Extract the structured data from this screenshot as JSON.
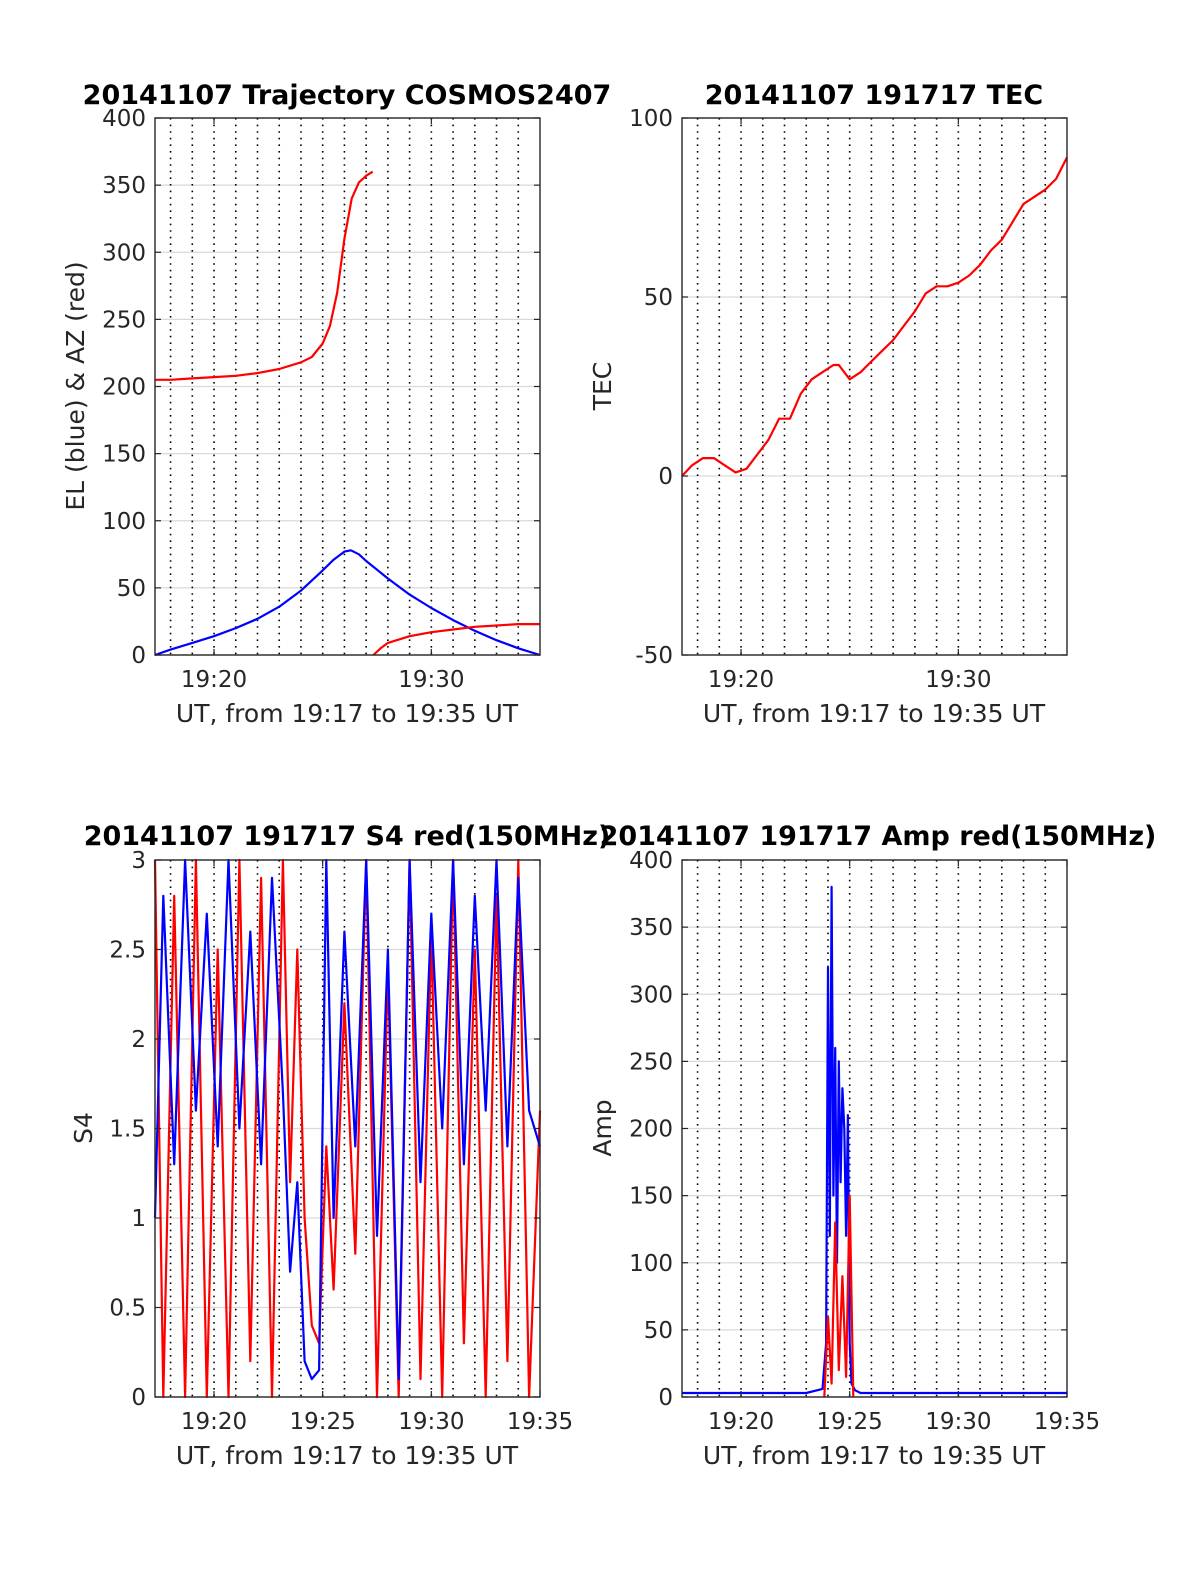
{
  "figure": {
    "colors": {
      "red": "#ff0000",
      "blue": "#0000ff",
      "grid": "#d9d9d9",
      "dotted": "#000000",
      "axis": "#262626"
    }
  },
  "chart_data": [
    {
      "type": "line",
      "title": "20141107 Trajectory COSMOS2407",
      "xlabel": "UT, from 19:17 to 19:35 UT",
      "ylabel": "EL (blue) & AZ (red)",
      "xlim": [
        "19:17:17",
        "19:35:00"
      ],
      "ylim": [
        0,
        400
      ],
      "xticks": [
        "19:20",
        "19:30"
      ],
      "yticks": [
        "0",
        "50",
        "100",
        "150",
        "200",
        "250",
        "300",
        "350",
        "400"
      ],
      "grid": true,
      "series": [
        {
          "color": "#0000ff",
          "x": [
            "19:17:17",
            "19:18:00",
            "19:19:00",
            "19:20:00",
            "19:21:00",
            "19:22:00",
            "19:23:00",
            "19:24:00",
            "19:25:00",
            "19:25:30",
            "19:26:00",
            "19:26:18",
            "19:26:40",
            "19:27:00",
            "19:28:00",
            "19:29:00",
            "19:30:00",
            "19:31:00",
            "19:32:00",
            "19:33:00",
            "19:34:00",
            "19:35:00"
          ],
          "y": [
            0,
            4,
            9,
            14,
            20,
            27,
            36,
            48,
            63,
            71,
            77,
            78,
            75,
            70,
            57,
            45,
            35,
            26,
            18,
            11,
            5,
            0
          ]
        },
        {
          "color": "#ff0000",
          "x": [
            "19:17:17",
            "19:18:00",
            "19:19:00",
            "19:20:00",
            "19:21:00",
            "19:22:00",
            "19:23:00",
            "19:24:00",
            "19:24:30",
            "19:25:00",
            "19:25:20",
            "19:25:40",
            "19:26:00",
            "19:26:20",
            "19:26:40",
            "19:27:00",
            "19:27:18",
            "19:27:19",
            "19:27:20",
            "19:27:40",
            "19:28:00",
            "19:29:00",
            "19:30:00",
            "19:31:00",
            "19:32:00",
            "19:33:00",
            "19:34:00",
            "19:35:00"
          ],
          "y": [
            205,
            205,
            206,
            207,
            208,
            210,
            213,
            218,
            222,
            232,
            245,
            270,
            310,
            340,
            352,
            357,
            360,
            null,
            0,
            5,
            9,
            14,
            17,
            19,
            21,
            22,
            23,
            23
          ]
        }
      ]
    },
    {
      "type": "line",
      "title": "20141107 191717 TEC",
      "xlabel": "UT, from 19:17 to 19:35 UT",
      "ylabel": "TEC",
      "xlim": [
        "19:17:17",
        "19:35:00"
      ],
      "ylim": [
        -50,
        100
      ],
      "xticks": [
        "19:20",
        "19:30"
      ],
      "yticks": [
        "-50",
        "0",
        "50",
        "100"
      ],
      "grid": true,
      "series": [
        {
          "color": "#ff0000",
          "x": [
            "19:17:17",
            "19:17:45",
            "19:18:15",
            "19:18:45",
            "19:19:15",
            "19:19:45",
            "19:20:15",
            "19:20:45",
            "19:21:15",
            "19:21:45",
            "19:22:15",
            "19:22:45",
            "19:23:15",
            "19:23:45",
            "19:24:15",
            "19:24:30",
            "19:25:00",
            "19:25:30",
            "19:26:00",
            "19:26:30",
            "19:27:00",
            "19:27:30",
            "19:28:00",
            "19:28:30",
            "19:29:00",
            "19:29:30",
            "19:30:00",
            "19:30:30",
            "19:31:00",
            "19:31:30",
            "19:32:00",
            "19:32:30",
            "19:33:00",
            "19:33:30",
            "19:34:00",
            "19:34:30",
            "19:35:00"
          ],
          "y": [
            0,
            3,
            5,
            5,
            3,
            1,
            2,
            6,
            10,
            16,
            16,
            23,
            27,
            29,
            31,
            31,
            27,
            29,
            32,
            35,
            38,
            42,
            46,
            51,
            53,
            53,
            54,
            56,
            59,
            63,
            66,
            71,
            76,
            78,
            80,
            83,
            89
          ]
        }
      ]
    },
    {
      "type": "line",
      "title": "20141107 191717 S4 red(150MHz)",
      "xlabel": "UT, from 19:17 to 19:35 UT",
      "ylabel": "S4",
      "xlim": [
        "19:17:17",
        "19:35:00"
      ],
      "ylim": [
        0,
        3
      ],
      "xticks": [
        "19:20",
        "19:25",
        "19:30",
        "19:35"
      ],
      "yticks": [
        "0",
        "0.5",
        "1",
        "1.5",
        "2",
        "2.5",
        "3"
      ],
      "grid": true,
      "series": [
        {
          "color": "#ff0000",
          "x": [
            "19:17:17",
            "19:17:40",
            "19:18:10",
            "19:18:40",
            "19:19:10",
            "19:19:40",
            "19:20:10",
            "19:20:40",
            "19:21:10",
            "19:21:40",
            "19:22:10",
            "19:22:40",
            "19:23:10",
            "19:23:30",
            "19:23:50",
            "19:24:10",
            "19:24:30",
            "19:24:50",
            "19:25:10",
            "19:25:30",
            "19:26:00",
            "19:26:30",
            "19:27:00",
            "19:27:30",
            "19:28:00",
            "19:28:30",
            "19:29:00",
            "19:29:30",
            "19:30:00",
            "19:30:30",
            "19:31:00",
            "19:31:30",
            "19:32:00",
            "19:32:30",
            "19:33:00",
            "19:33:30",
            "19:34:00",
            "19:34:30",
            "19:35:00"
          ],
          "y": [
            3,
            0,
            2.8,
            0,
            3,
            0,
            2.5,
            0,
            3,
            0.2,
            2.9,
            0,
            3,
            1.2,
            2.5,
            1.0,
            0.4,
            0.3,
            1.4,
            0.6,
            2.2,
            0.8,
            3,
            0,
            2.4,
            0,
            3,
            0.1,
            2.6,
            0,
            3,
            0.3,
            2.5,
            0,
            2.8,
            0.2,
            3,
            0,
            1.6
          ]
        },
        {
          "color": "#0000ff",
          "x": [
            "19:17:17",
            "19:17:40",
            "19:18:10",
            "19:18:40",
            "19:19:10",
            "19:19:40",
            "19:20:10",
            "19:20:40",
            "19:21:10",
            "19:21:40",
            "19:22:10",
            "19:22:40",
            "19:23:10",
            "19:23:30",
            "19:23:50",
            "19:24:10",
            "19:24:30",
            "19:24:50",
            "19:25:10",
            "19:25:30",
            "19:26:00",
            "19:26:30",
            "19:27:00",
            "19:27:30",
            "19:28:00",
            "19:28:30",
            "19:29:00",
            "19:29:30",
            "19:30:00",
            "19:30:30",
            "19:31:00",
            "19:31:30",
            "19:32:00",
            "19:32:30",
            "19:33:00",
            "19:33:30",
            "19:34:00",
            "19:34:30",
            "19:35:00"
          ],
          "y": [
            1.0,
            2.8,
            1.3,
            3,
            1.6,
            2.7,
            1.4,
            3,
            1.5,
            2.6,
            1.3,
            2.9,
            1.7,
            0.7,
            1.2,
            0.2,
            0.1,
            0.15,
            3,
            1.0,
            2.6,
            1.4,
            3,
            0.9,
            2.5,
            0.1,
            3,
            1.2,
            2.7,
            1.5,
            3,
            1.3,
            2.8,
            1.6,
            3,
            1.4,
            2.9,
            1.6,
            1.4
          ]
        }
      ]
    },
    {
      "type": "line",
      "title": "20141107 191717 Amp red(150MHz)",
      "xlabel": "UT, from 19:17 to 19:35 UT",
      "ylabel": "Amp",
      "xlim": [
        "19:17:17",
        "19:35:00"
      ],
      "ylim": [
        0,
        400
      ],
      "xticks": [
        "19:20",
        "19:25",
        "19:30",
        "19:35"
      ],
      "yticks": [
        "0",
        "50",
        "100",
        "150",
        "200",
        "250",
        "300",
        "350",
        "400"
      ],
      "grid": true,
      "series": [
        {
          "color": "#0000ff",
          "x": [
            "19:17:17",
            "19:19:00",
            "19:21:00",
            "19:23:00",
            "19:23:45",
            "19:23:55",
            "19:24:00",
            "19:24:05",
            "19:24:10",
            "19:24:15",
            "19:24:20",
            "19:24:25",
            "19:24:30",
            "19:24:35",
            "19:24:40",
            "19:24:45",
            "19:24:50",
            "19:24:55",
            "19:25:00",
            "19:25:05",
            "19:25:15",
            "19:25:30",
            "19:27:00",
            "19:29:00",
            "19:31:00",
            "19:33:00",
            "19:35:00"
          ],
          "y": [
            3,
            3,
            3,
            3,
            6,
            40,
            320,
            120,
            380,
            150,
            260,
            100,
            250,
            160,
            230,
            200,
            120,
            210,
            40,
            10,
            5,
            3,
            3,
            3,
            3,
            3,
            3
          ]
        },
        {
          "color": "#ff0000",
          "x": [
            "19:23:50",
            "19:24:00",
            "19:24:10",
            "19:24:20",
            "19:24:30",
            "19:24:40",
            "19:24:50",
            "19:25:00",
            "19:25:10"
          ],
          "y": [
            0,
            60,
            10,
            130,
            20,
            90,
            15,
            150,
            0
          ]
        }
      ]
    }
  ]
}
